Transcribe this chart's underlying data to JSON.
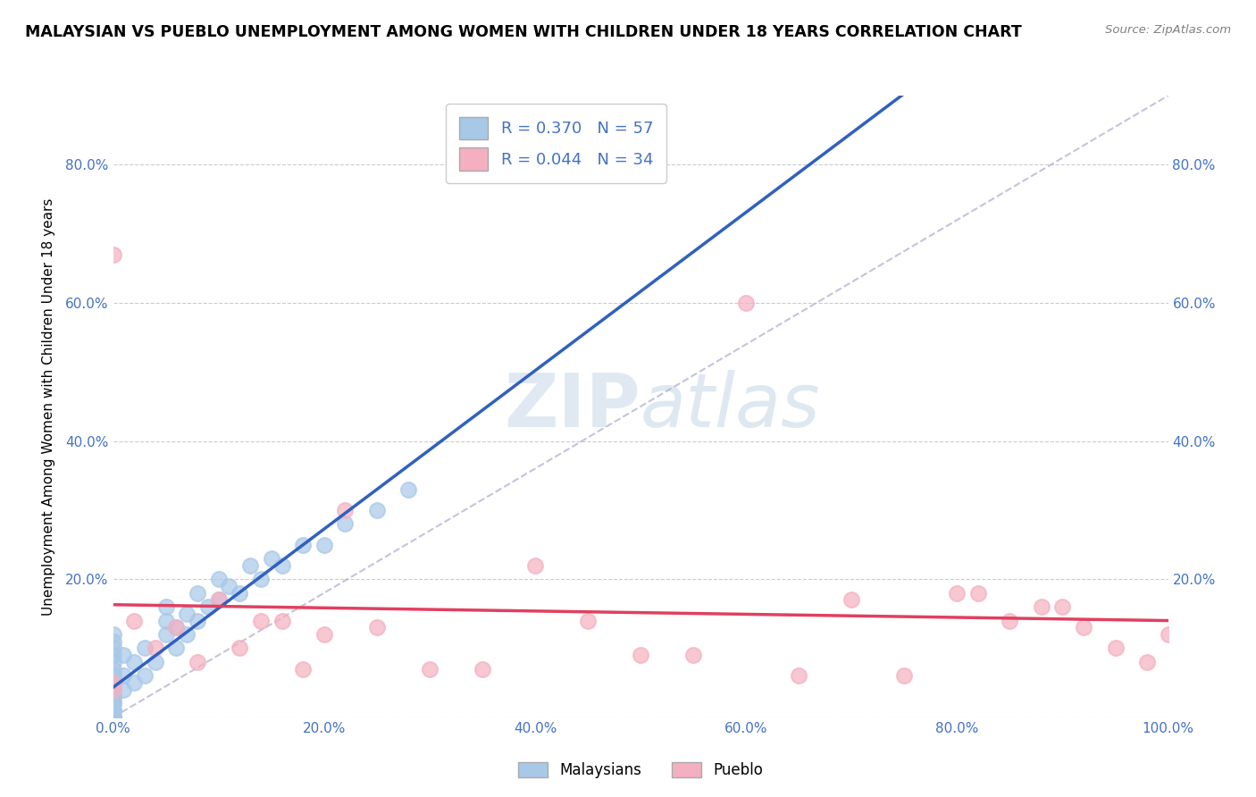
{
  "title": "MALAYSIAN VS PUEBLO UNEMPLOYMENT AMONG WOMEN WITH CHILDREN UNDER 18 YEARS CORRELATION CHART",
  "source": "Source: ZipAtlas.com",
  "ylabel": "Unemployment Among Women with Children Under 18 years",
  "xlim": [
    0.0,
    1.0
  ],
  "ylim": [
    0.0,
    0.9
  ],
  "xticks": [
    0.0,
    0.2,
    0.4,
    0.6,
    0.8,
    1.0
  ],
  "xtick_labels": [
    "0.0%",
    "20.0%",
    "40.0%",
    "60.0%",
    "80.0%",
    "100.0%"
  ],
  "yticks": [
    0.0,
    0.2,
    0.4,
    0.6,
    0.8
  ],
  "ytick_labels": [
    "",
    "20.0%",
    "40.0%",
    "60.0%",
    "80.0%"
  ],
  "right_ytick_labels": [
    "",
    "20.0%",
    "40.0%",
    "60.0%",
    "80.0%"
  ],
  "malaysian_color": "#a8c8e8",
  "pueblo_color": "#f4b0c0",
  "malaysian_line_color": "#3060c0",
  "pueblo_line_color": "#e04060",
  "R_malaysian": 0.37,
  "N_malaysian": 57,
  "R_pueblo": 0.044,
  "N_pueblo": 34,
  "legend_label_1": "R = 0.370   N = 57",
  "legend_label_2": "R = 0.044   N = 34",
  "legend_malaysians": "Malaysians",
  "legend_pueblo": "Pueblo",
  "watermark_zip": "ZIP",
  "watermark_atlas": "atlas",
  "malaysian_x": [
    0.0,
    0.0,
    0.0,
    0.0,
    0.0,
    0.0,
    0.0,
    0.0,
    0.0,
    0.0,
    0.0,
    0.0,
    0.0,
    0.0,
    0.0,
    0.0,
    0.0,
    0.0,
    0.0,
    0.0,
    0.0,
    0.0,
    0.0,
    0.0,
    0.0,
    0.0,
    0.01,
    0.01,
    0.01,
    0.02,
    0.02,
    0.03,
    0.03,
    0.04,
    0.05,
    0.05,
    0.05,
    0.06,
    0.06,
    0.07,
    0.07,
    0.08,
    0.08,
    0.09,
    0.1,
    0.1,
    0.11,
    0.12,
    0.13,
    0.14,
    0.15,
    0.16,
    0.18,
    0.2,
    0.22,
    0.25,
    0.28
  ],
  "malaysian_y": [
    0.0,
    0.0,
    0.0,
    0.0,
    0.0,
    0.0,
    0.0,
    0.0,
    0.0,
    0.0,
    0.01,
    0.01,
    0.02,
    0.02,
    0.03,
    0.03,
    0.04,
    0.05,
    0.05,
    0.06,
    0.07,
    0.08,
    0.09,
    0.1,
    0.11,
    0.12,
    0.04,
    0.06,
    0.09,
    0.05,
    0.08,
    0.06,
    0.1,
    0.08,
    0.12,
    0.14,
    0.16,
    0.1,
    0.13,
    0.12,
    0.15,
    0.14,
    0.18,
    0.16,
    0.17,
    0.2,
    0.19,
    0.18,
    0.22,
    0.2,
    0.23,
    0.22,
    0.25,
    0.25,
    0.28,
    0.3,
    0.33
  ],
  "pueblo_x": [
    0.0,
    0.0,
    0.0,
    0.02,
    0.04,
    0.06,
    0.08,
    0.1,
    0.12,
    0.14,
    0.16,
    0.18,
    0.2,
    0.22,
    0.25,
    0.3,
    0.35,
    0.4,
    0.45,
    0.5,
    0.55,
    0.6,
    0.65,
    0.7,
    0.75,
    0.8,
    0.82,
    0.85,
    0.88,
    0.9,
    0.92,
    0.95,
    0.98,
    1.0
  ],
  "pueblo_y": [
    0.67,
    0.05,
    0.04,
    0.14,
    0.1,
    0.13,
    0.08,
    0.17,
    0.1,
    0.14,
    0.14,
    0.07,
    0.12,
    0.3,
    0.13,
    0.07,
    0.07,
    0.22,
    0.14,
    0.09,
    0.09,
    0.6,
    0.06,
    0.17,
    0.06,
    0.18,
    0.18,
    0.14,
    0.16,
    0.16,
    0.13,
    0.1,
    0.08,
    0.12
  ]
}
